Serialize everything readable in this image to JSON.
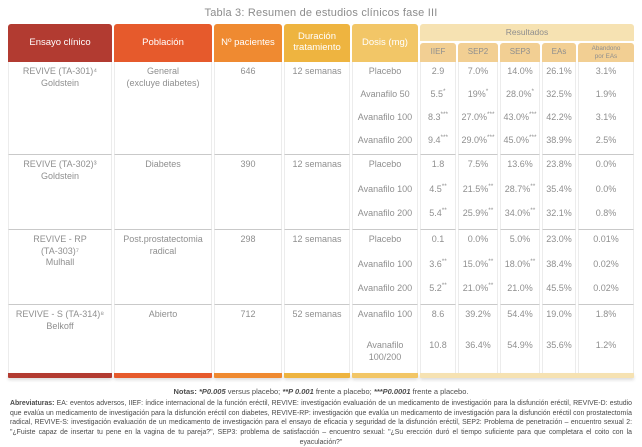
{
  "title": "Tabla 3: Resumen de estudios clínicos fase III",
  "table": {
    "headers": {
      "ensayo": "Ensayo clínico",
      "poblacion": "Población",
      "pacientes": "Nº pacientes",
      "duracion": "Duración\ntratamiento",
      "dosis": "Dosis (mg)",
      "resultados": "Resultados",
      "sub": [
        "IIEF",
        "SEP2",
        "SEP3",
        "EAs",
        "Abandono\npor EAs"
      ]
    },
    "studies": [
      {
        "name": "REVIVE (TA-301)⁴\nGoldstein",
        "population": "General\n(excluye diabetes)",
        "patients": "646",
        "duration": "12 semanas",
        "rows": [
          {
            "dose": "Placebo",
            "values": [
              "2.9",
              "7.0%",
              "14.0%",
              "26.1%",
              "3.1%"
            ]
          },
          {
            "dose": "Avanafilo 50",
            "values": [
              "5.5*",
              "19%*",
              "28.0%*",
              "32.5%",
              "1.9%"
            ]
          },
          {
            "dose": "Avanafilo 100",
            "values": [
              "8.3***",
              "27.0%***",
              "43.0%***",
              "42.2%",
              "3.1%"
            ]
          },
          {
            "dose": "Avanafilo 200",
            "values": [
              "9.4***",
              "29.0%***",
              "45.0%***",
              "38.9%",
              "2.5%"
            ]
          }
        ]
      },
      {
        "name": "REVIVE (TA-302)³\nGoldstein",
        "population": "Diabetes",
        "patients": "390",
        "duration": "12 semanas",
        "rows": [
          {
            "dose": "Placebo",
            "values": [
              "1.8",
              "7.5%",
              "13.6%",
              "23.8%",
              "0.0%"
            ]
          },
          {
            "dose": "Avanafilo 100",
            "values": [
              "4.5**",
              "21.5%**",
              "28.7%**",
              "35.4%",
              "0.0%"
            ]
          },
          {
            "dose": "Avanafilo 200",
            "values": [
              "5.4**",
              "25.9%**",
              "34.0%**",
              "32.1%",
              "0.8%"
            ]
          }
        ]
      },
      {
        "name": "REVIVE - RP\n(TA-303)⁷\nMulhall",
        "population": "Post.prostatectomia\nradical",
        "patients": "298",
        "duration": "12 semanas",
        "rows": [
          {
            "dose": "Placebo",
            "values": [
              "0.1",
              "0.0%",
              "5.0%",
              "23.0%",
              "0.01%"
            ]
          },
          {
            "dose": "Avanafilo 100",
            "values": [
              "3.6**",
              "15.0%**",
              "18.0%**",
              "38.4%",
              "0.02%"
            ]
          },
          {
            "dose": "Avanafilo 200",
            "values": [
              "5.2**",
              "21.0%**",
              "21.0%",
              "45.5%",
              "0.02%"
            ]
          }
        ]
      },
      {
        "name": "REVIVE - S (TA-314)⁸\nBelkoff",
        "population": "Abierto",
        "patients": "712",
        "duration": "52 semanas",
        "rows": [
          {
            "dose": "Avanafilo 100",
            "values": [
              "8.6",
              "39.2%",
              "54.4%",
              "19.0%",
              "1.8%"
            ]
          },
          {
            "dose": "Avanafilo\n100/200",
            "values": [
              "10.8",
              "36.4%",
              "54.9%",
              "35.6%",
              "1.2%"
            ]
          }
        ]
      }
    ]
  },
  "notes": {
    "label": "Notas: ",
    "parts": [
      {
        "text": "*P0.005",
        "sig": true
      },
      {
        "text": " versus placebo; ",
        "sig": false
      },
      {
        "text": "**P 0.001",
        "sig": true
      },
      {
        "text": " frente a placebo; ",
        "sig": false
      },
      {
        "text": "***P0.0001",
        "sig": true
      },
      {
        "text": " frente a placebo.",
        "sig": false
      }
    ]
  },
  "abbreviations": {
    "label": "Abreviaturas:",
    "text": " EA: eventos adversos, IIEF: índice internacional de la función eréctil, REVIVE: investigación evaluación de un medicamento de investigación para la disfunción eréctil, REVIVE-D: estudio que evalúa un medicamento de investigación para la disfunción eréctil con diabetes, REVIVE-RP: investigación que evalúa un medicamento de investigación para la disfunción eréctil con prostatectomía radical, REVIVE-S: investigación evaluación de un medicamento de investigación para el ensayo de eficacia y seguridad de la disfunción eréctil, SEP2: Problema de penetración – encuentro sexual 2: \"¿Fuiste capaz de insertar tu pene en la vagina de tu pareja?\", SEP3: problema de satisfacción – encuentro sexual: \"¿Su erección duró el tiempo suficiente para que completara el coito con la eyaculación?\""
  },
  "colors": {
    "col_ensayo": "#b23b31",
    "col_poblacion": "#e65a2c",
    "col_pacientes": "#ef8a31",
    "col_duracion": "#eeb440",
    "col_dosis": "#f2c667",
    "resultados_band": "#f6e2b2",
    "subheader": "#f2cf93"
  }
}
